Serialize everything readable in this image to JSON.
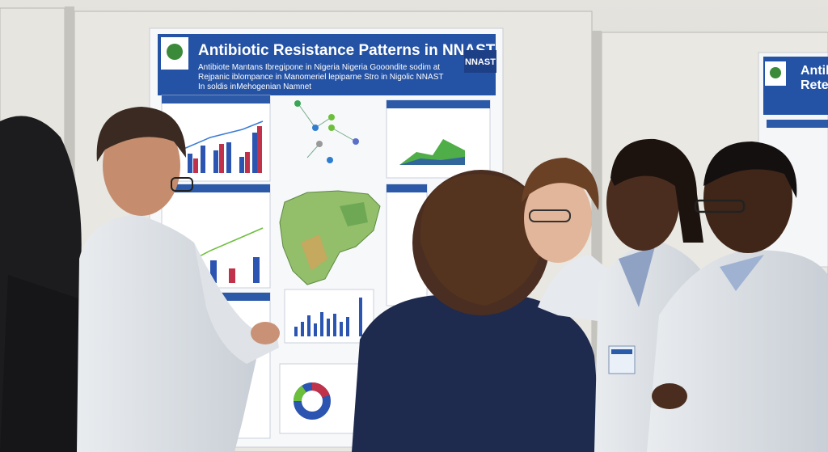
{
  "poster": {
    "title": "Antibiotic Resistance Patterns in NNAST",
    "badge": "NNAST",
    "subtitle_lines": [
      "Antibiote Mantans Ibregipone in Nigeria Nigeria Gooondite sodim at",
      "Rejpanic iblompance in Manomeriel lepiparne Stro in Nigolic NNAST",
      "In soldis inMehogenian Namnet"
    ]
  },
  "side_poster": {
    "title_lines": [
      "Antib",
      "Rete"
    ]
  }
}
